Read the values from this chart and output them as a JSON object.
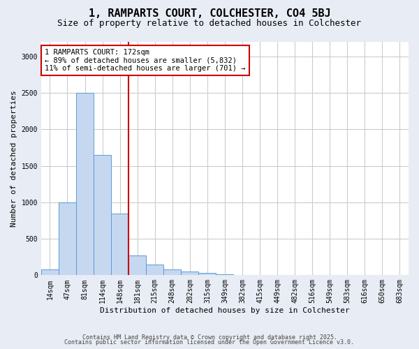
{
  "title1": "1, RAMPARTS COURT, COLCHESTER, CO4 5BJ",
  "title2": "Size of property relative to detached houses in Colchester",
  "xlabel": "Distribution of detached houses by size in Colchester",
  "ylabel": "Number of detached properties",
  "categories": [
    "14sqm",
    "47sqm",
    "81sqm",
    "114sqm",
    "148sqm",
    "181sqm",
    "215sqm",
    "248sqm",
    "282sqm",
    "315sqm",
    "349sqm",
    "382sqm",
    "415sqm",
    "449sqm",
    "482sqm",
    "516sqm",
    "549sqm",
    "583sqm",
    "616sqm",
    "650sqm",
    "683sqm"
  ],
  "values": [
    75,
    1000,
    2500,
    1650,
    850,
    275,
    150,
    75,
    50,
    30,
    10,
    5,
    3,
    2,
    0,
    2,
    1,
    0,
    0,
    0,
    0
  ],
  "bar_color": "#c5d8f0",
  "bar_edge_color": "#5b9bd5",
  "annotation_text": "1 RAMPARTS COURT: 172sqm\n← 89% of detached houses are smaller (5,832)\n11% of semi-detached houses are larger (701) →",
  "annotation_box_color": "white",
  "annotation_box_edge_color": "#cc0000",
  "vline_color": "#cc0000",
  "vline_x_index": 4.5,
  "ylim": [
    0,
    3200
  ],
  "yticks": [
    0,
    500,
    1000,
    1500,
    2000,
    2500,
    3000
  ],
  "plot_bg_color": "white",
  "fig_bg_color": "#e8ecf4",
  "grid_color": "#cccccc",
  "footer1": "Contains HM Land Registry data © Crown copyright and database right 2025.",
  "footer2": "Contains public sector information licensed under the Open Government Licence v3.0.",
  "title_fontsize": 11,
  "subtitle_fontsize": 9,
  "tick_fontsize": 7,
  "label_fontsize": 8,
  "footer_fontsize": 6
}
